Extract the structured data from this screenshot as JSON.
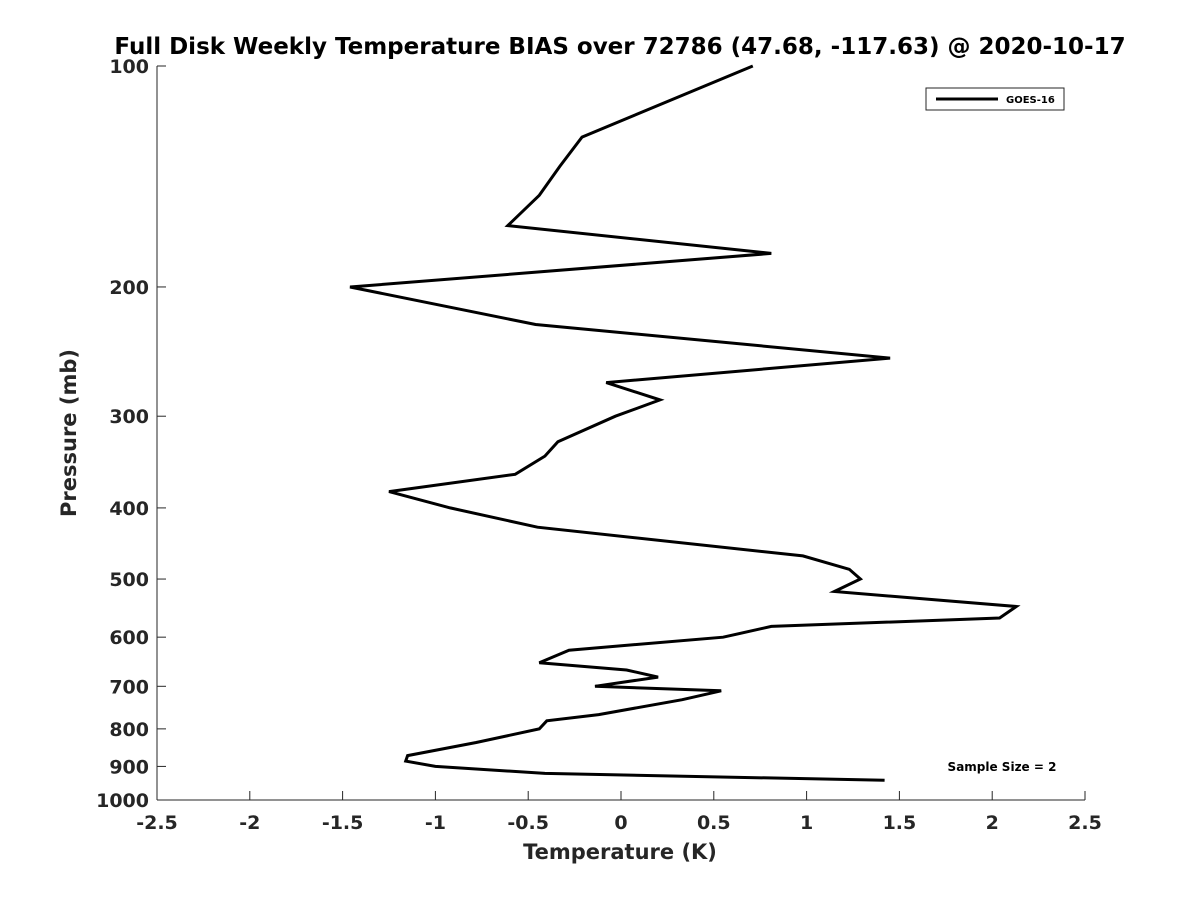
{
  "chart_data": {
    "type": "line",
    "title": "Full Disk Weekly Temperature BIAS over 72786 (47.68, -117.63) @ 2020-10-17",
    "xlabel": "Temperature (K)",
    "ylabel": "Pressure (mb)",
    "xlim": [
      -2.5,
      2.5
    ],
    "ylim": [
      100,
      1000
    ],
    "yscale": "log",
    "y_reversed": true,
    "x_ticks": [
      -2.5,
      -2,
      -1.5,
      -1,
      -0.5,
      0,
      0.5,
      1,
      1.5,
      2,
      2.5
    ],
    "x_tick_labels": [
      "-2.5",
      "-2",
      "-1.5",
      "-1",
      "-0.5",
      "0",
      "0.5",
      "1",
      "1.5",
      "2",
      "2.5"
    ],
    "y_ticks": [
      100,
      200,
      300,
      400,
      500,
      600,
      700,
      800,
      900,
      1000
    ],
    "y_tick_labels": [
      "100",
      "200",
      "300",
      "400",
      "500",
      "600",
      "700",
      "800",
      "900",
      "1000"
    ],
    "grid": false,
    "legend_position": "top-right",
    "series": [
      {
        "name": "GOES-16",
        "color": "#000000",
        "x": [
          0.71,
          -0.21,
          -0.33,
          -0.44,
          -0.61,
          0.81,
          -1.46,
          -0.46,
          1.45,
          -0.08,
          0.21,
          -0.03,
          -0.34,
          -0.41,
          -0.57,
          -1.25,
          -0.92,
          -0.45,
          0.98,
          1.23,
          1.29,
          1.15,
          2.13,
          2.04,
          0.81,
          0.55,
          -0.28,
          -0.44,
          0.03,
          0.2,
          -0.14,
          0.54,
          0.33,
          -0.12,
          -0.4,
          -0.44,
          -0.78,
          -1.15,
          -1.16,
          -1.0,
          -0.41,
          1.42
        ],
        "y": [
          100,
          125,
          137,
          150,
          165,
          180,
          200,
          225,
          250,
          270,
          285,
          300,
          325,
          340,
          360,
          380,
          400,
          425,
          465,
          485,
          500,
          520,
          545,
          565,
          580,
          600,
          625,
          650,
          665,
          680,
          700,
          710,
          730,
          765,
          780,
          800,
          835,
          870,
          885,
          900,
          920,
          940
        ]
      }
    ],
    "annotations": [
      "Sample Size = 2"
    ]
  }
}
